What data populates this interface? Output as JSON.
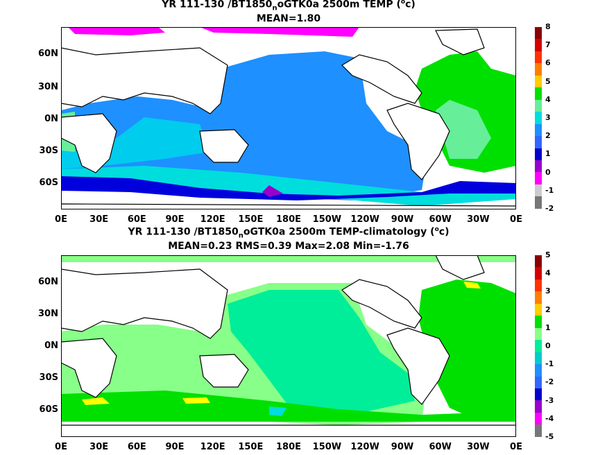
{
  "panels": [
    {
      "title_prefix": "YR 111-130 /BT1850",
      "title_sub": "n",
      "title_suffix": "oGTK0a 2500m TEMP (",
      "title_unit_sup": "o",
      "title_unit_end": "c)",
      "stats": "MEAN=1.80",
      "lat_labels": [
        "60N",
        "30N",
        "0N",
        "30S",
        "60S"
      ],
      "lon_labels": [
        "0E",
        "30E",
        "60E",
        "90E",
        "120E",
        "150E",
        "180E",
        "150W",
        "120W",
        "90W",
        "60W",
        "30W",
        "0E"
      ],
      "colorbar": {
        "labels": [
          "8",
          "7",
          "6",
          "5",
          "4",
          "3",
          "2",
          "1",
          "0",
          "-1",
          "-2"
        ],
        "colors": [
          "#8b0000",
          "#d40000",
          "#ff3300",
          "#ff7f00",
          "#ffcc00",
          "#00e000",
          "#66ee99",
          "#00dddd",
          "#1e90ff",
          "#3366ff",
          "#0000cc",
          "#9900cc",
          "#ff00ff",
          "#cccccc",
          "#777777"
        ]
      }
    },
    {
      "title_prefix": "YR 111-130 /BT1850",
      "title_sub": "n",
      "title_suffix": "oGTK0a 2500m TEMP-climatology (",
      "title_unit_sup": "o",
      "title_unit_end": "c)",
      "stats": "MEAN=0.23   RMS=0.39   Max=2.08   Min=-1.76",
      "lat_labels": [
        "60N",
        "30N",
        "0N",
        "30S",
        "60S"
      ],
      "lon_labels": [
        "0E",
        "30E",
        "60E",
        "90E",
        "120E",
        "150E",
        "180E",
        "150W",
        "120W",
        "90W",
        "60W",
        "30W",
        "0E"
      ],
      "colorbar": {
        "labels": [
          "5",
          "4",
          "3",
          "2",
          "1",
          "0",
          "-1",
          "-2",
          "-3",
          "-4",
          "-5"
        ],
        "colors": [
          "#8b0000",
          "#d40000",
          "#ff3300",
          "#ff7f00",
          "#ffcc00",
          "#00e000",
          "#88ff88",
          "#00ee99",
          "#00cccc",
          "#1e90ff",
          "#3366ff",
          "#0000cc",
          "#9900cc",
          "#ff00ff",
          "#777777"
        ]
      }
    }
  ]
}
